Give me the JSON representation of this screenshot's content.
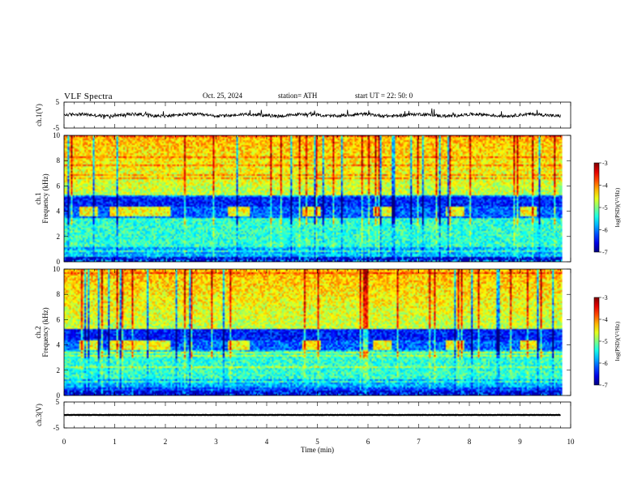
{
  "header": {
    "title": "VLF Spectra",
    "date": "Oct. 25, 2024",
    "station": "station= ATH",
    "start": "start  UT  =   22: 50: 0"
  },
  "chart_data": [
    {
      "type": "line",
      "name": "ch1-waveform",
      "ylabel": "ch.1(V)",
      "ylim": [
        -5,
        5
      ],
      "yticks": [
        "5",
        "-5"
      ],
      "xlim": [
        0,
        10
      ],
      "baseline": 0,
      "noise_amplitude": 1.2
    },
    {
      "type": "heatmap",
      "name": "ch1-spectrogram",
      "ylabel_line1": "ch.1",
      "ylabel_line2": "Frequency (kHz)",
      "ylim": [
        0,
        10
      ],
      "yticks": [
        "0",
        "2",
        "4",
        "6",
        "8",
        "10"
      ],
      "xlim": [
        0,
        9.8
      ],
      "bursts_min": [
        [
          0.3,
          0.65
        ],
        [
          0.9,
          2.1
        ],
        [
          3.25,
          3.65
        ],
        [
          4.7,
          5.05
        ],
        [
          6.1,
          6.45
        ],
        [
          7.55,
          7.9
        ],
        [
          9.0,
          9.35
        ]
      ],
      "burst_band_khz": [
        3.6,
        4.3
      ],
      "colorbar": {
        "label": "log(PSD)(V²/Hz)",
        "range": [
          -7,
          -3
        ],
        "ticks": [
          "-3",
          "-4",
          "-5",
          "-6",
          "-7"
        ]
      }
    },
    {
      "type": "heatmap",
      "name": "ch2-spectrogram",
      "ylabel_line1": "ch.2",
      "ylabel_line2": "Frequency (kHz)",
      "ylim": [
        0,
        10
      ],
      "yticks": [
        "0",
        "2",
        "4",
        "6",
        "8",
        "10"
      ],
      "xlim": [
        0,
        9.8
      ],
      "bursts_min": [
        [
          0.3,
          0.65
        ],
        [
          0.9,
          2.1
        ],
        [
          3.25,
          3.65
        ],
        [
          4.7,
          5.05
        ],
        [
          6.1,
          6.45
        ],
        [
          7.55,
          7.9
        ],
        [
          9.0,
          9.35
        ]
      ],
      "burst_band_khz": [
        3.6,
        4.3
      ],
      "colorbar": {
        "label": "log(PSD)(V²/Hz)",
        "range": [
          -7,
          -3
        ],
        "ticks": [
          "-3",
          "-4",
          "-5",
          "-6",
          "-7"
        ]
      }
    },
    {
      "type": "line",
      "name": "ch3-waveform",
      "ylabel": "ch.3(V)",
      "ylim": [
        -5,
        5
      ],
      "yticks": [
        "5",
        "-5"
      ],
      "xlim": [
        0,
        10
      ],
      "baseline": 0,
      "noise_amplitude": 0.15
    }
  ],
  "time_axis": {
    "xlabel": "Time  (min)",
    "range": [
      0,
      10
    ],
    "ticks": [
      "0",
      "1",
      "2",
      "3",
      "4",
      "5",
      "6",
      "7",
      "8",
      "9",
      "10"
    ]
  }
}
